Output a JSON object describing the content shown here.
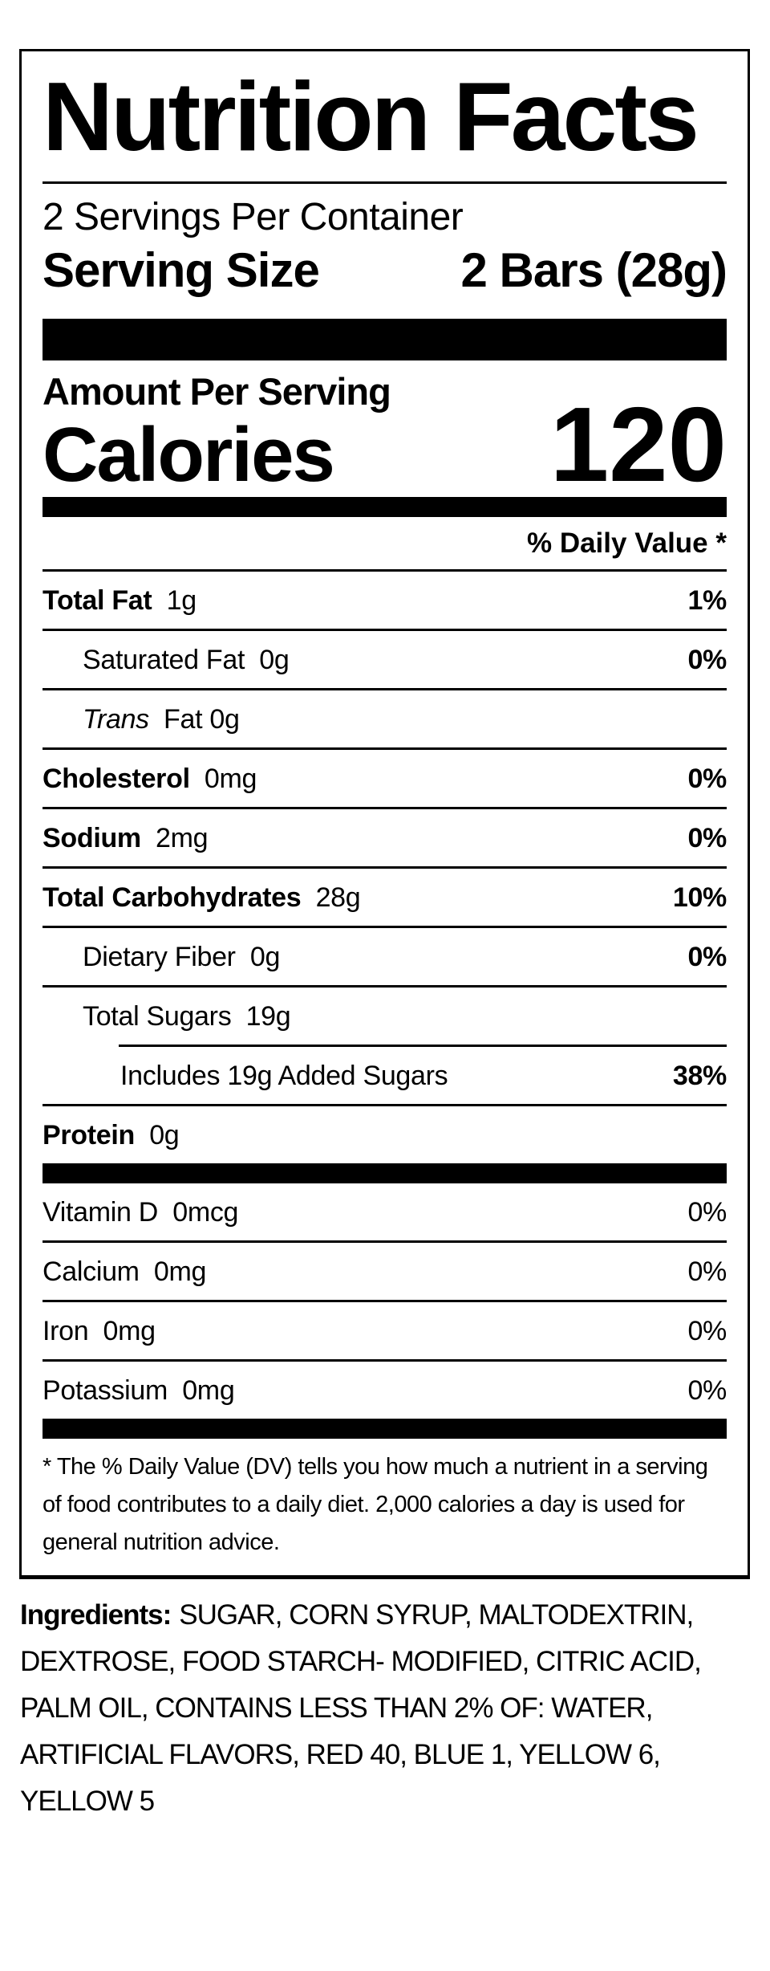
{
  "label": {
    "title": "Nutrition Facts",
    "servings_per_container": "2 Servings Per Container",
    "serving_size_label": "Serving Size",
    "serving_size_value": "2 Bars (28g)",
    "amount_per_serving": "Amount Per Serving",
    "calories_label": "Calories",
    "calories_value": "120",
    "daily_value_header": "% Daily Value *",
    "rows": [
      {
        "name": "Total Fat",
        "amount": "1g",
        "dv": "1%"
      },
      {
        "name": "Saturated Fat",
        "amount": "0g",
        "dv": "0%"
      },
      {
        "name": "Trans",
        "amount": "Fat 0g",
        "dv": ""
      },
      {
        "name": "Cholesterol",
        "amount": "0mg",
        "dv": "0%"
      },
      {
        "name": "Sodium",
        "amount": "2mg",
        "dv": "0%"
      },
      {
        "name": "Total Carbohydrates",
        "amount": "28g",
        "dv": "10%"
      },
      {
        "name": "Dietary Fiber",
        "amount": "0g",
        "dv": "0%"
      },
      {
        "name": "Total Sugars",
        "amount": "19g",
        "dv": ""
      },
      {
        "name": "Includes 19g Added Sugars",
        "amount": "",
        "dv": "38%"
      },
      {
        "name": "Protein",
        "amount": "0g",
        "dv": ""
      },
      {
        "name": "Vitamin D",
        "amount": "0mcg",
        "dv": "0%"
      },
      {
        "name": "Calcium",
        "amount": "0mg",
        "dv": "0%"
      },
      {
        "name": "Iron",
        "amount": "0mg",
        "dv": "0%"
      },
      {
        "name": "Potassium",
        "amount": "0mg",
        "dv": "0%"
      }
    ],
    "footnote": "* The % Daily Value (DV) tells you how much a nutrient in a serving of food contributes to a daily diet. 2,000 calories a day is used for general nutrition advice."
  },
  "ingredients": {
    "heading": "Ingredients:",
    "text": "SUGAR, CORN SYRUP, MALTODEXTRIN, DEXTROSE, FOOD STARCH- MODIFIED, CITRIC ACID, PALM OIL, CONTAINS LESS THAN 2% OF: WATER, ARTIFICIAL FLAVORS, RED 40, BLUE 1, YELLOW 6, YELLOW 5"
  },
  "colors": {
    "text": "#000000",
    "background": "#ffffff"
  }
}
